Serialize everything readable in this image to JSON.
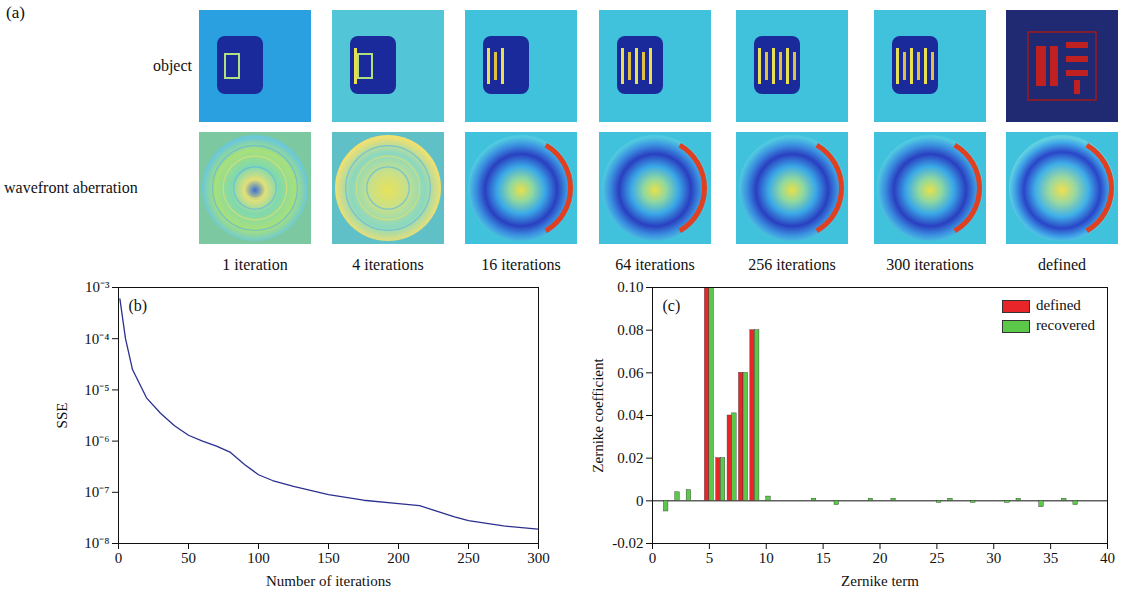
{
  "panel_a": {
    "label": "(a)",
    "row_labels": [
      "object",
      "wavefront aberration"
    ],
    "column_labels": [
      "1 iteration",
      "4 iterations",
      "16 iterations",
      "64 iterations",
      "256 iterations",
      "300 iterations",
      "defined"
    ]
  },
  "chart_data": [
    {
      "type": "line",
      "panel_label": "(b)",
      "x_label": "Number of iterations",
      "y_label": "SSE",
      "x": [
        1,
        5,
        10,
        20,
        30,
        40,
        50,
        60,
        70,
        80,
        90,
        100,
        110,
        125,
        150,
        175,
        200,
        215,
        225,
        240,
        250,
        275,
        300
      ],
      "values": [
        0.0006,
        0.0001,
        2.5e-05,
        7e-06,
        3.5e-06,
        2e-06,
        1.3e-06,
        1e-06,
        8e-07,
        6e-07,
        3.5e-07,
        2.2e-07,
        1.7e-07,
        1.3e-07,
        9e-08,
        7e-08,
        6e-08,
        5.5e-08,
        4.5e-08,
        3.3e-08,
        2.8e-08,
        2.2e-08,
        1.9e-08
      ],
      "color": "#2b2f8f",
      "log": "y",
      "xlim": [
        0,
        300
      ],
      "xticks": [
        0,
        50,
        100,
        150,
        200,
        250,
        300
      ],
      "ylim": [
        1e-08,
        0.001
      ],
      "yticks": [
        {
          "value": 1e-08,
          "label": "10⁻⁸"
        },
        {
          "value": 1e-07,
          "label": "10⁻⁷"
        },
        {
          "value": 1e-06,
          "label": "10⁻⁶"
        },
        {
          "value": 1e-05,
          "label": "10⁻⁵"
        },
        {
          "value": 0.0001,
          "label": "10⁻⁴"
        },
        {
          "value": 0.001,
          "label": "10⁻³"
        }
      ]
    },
    {
      "type": "bar",
      "panel_label": "(c)",
      "x_label": "Zernike term",
      "y_label": "Zernike coefficient",
      "x": [
        1,
        2,
        3,
        4,
        5,
        6,
        7,
        8,
        9,
        10,
        11,
        12,
        13,
        14,
        15,
        16,
        17,
        18,
        19,
        20,
        21,
        22,
        23,
        24,
        25,
        26,
        27,
        28,
        29,
        30,
        31,
        32,
        33,
        34,
        35,
        36,
        37
      ],
      "series": [
        {
          "name": "defined",
          "color": "#e8262a",
          "values": [
            0,
            0,
            0,
            0,
            0.1,
            0.02,
            0.04,
            0.06,
            0.08,
            0,
            0,
            0,
            0,
            0,
            0,
            0,
            0,
            0,
            0,
            0,
            0,
            0,
            0,
            0,
            0,
            0,
            0,
            0,
            0,
            0,
            0,
            0,
            0,
            0,
            0,
            0,
            0
          ]
        },
        {
          "name": "recovered",
          "color": "#5cc84a",
          "values": [
            -0.005,
            0.004,
            0.005,
            0,
            0.1,
            0.02,
            0.041,
            0.06,
            0.08,
            0.002,
            0,
            0,
            0,
            0.001,
            0,
            -0.002,
            0,
            0,
            0.001,
            0,
            0.001,
            0,
            0,
            0,
            -0.001,
            0.001,
            0,
            -0.001,
            0,
            0,
            -0.001,
            0.001,
            0,
            -0.003,
            0,
            0.001,
            -0.002
          ]
        }
      ],
      "legend": "top-right",
      "xlim": [
        0,
        40
      ],
      "xticks": [
        0,
        5,
        10,
        15,
        20,
        25,
        30,
        35,
        40
      ],
      "ylim": [
        -0.02,
        0.1
      ],
      "yticks": [
        -0.02,
        0,
        0.02,
        0.04,
        0.06,
        0.08,
        {
          "value": 0.1,
          "label": "0.10"
        }
      ]
    }
  ]
}
